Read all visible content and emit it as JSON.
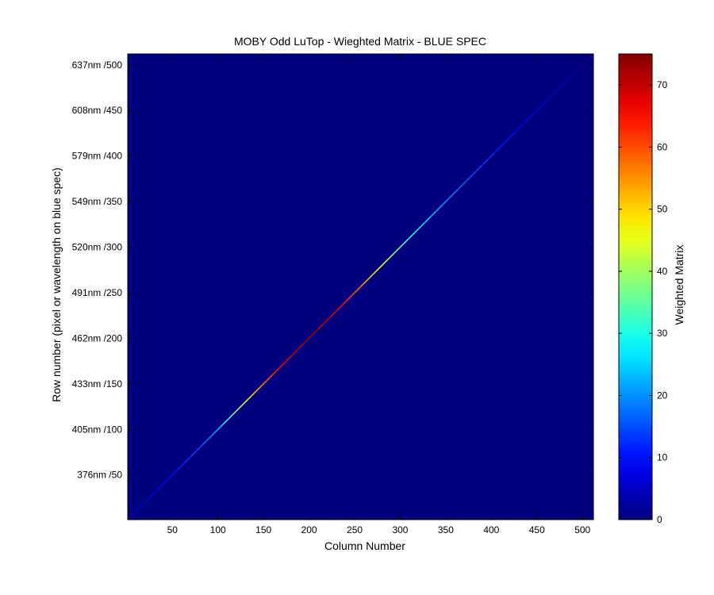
{
  "chart_data": {
    "type": "heatmap",
    "title": "MOBY Odd LuTop - Wieghted Matrix - BLUE SPEC",
    "xlabel": "Column Number",
    "ylabel": "Row number (pixel or wavelength on blue spec)",
    "colorbar_label": "Weighted Matrix",
    "xlim": [
      1,
      512
    ],
    "ylim": [
      1,
      512
    ],
    "clim": [
      0,
      75
    ],
    "colormap": "jet",
    "background_value": 0,
    "x_ticks": [
      50,
      100,
      150,
      200,
      250,
      300,
      350,
      400,
      450,
      500
    ],
    "x_tick_labels": [
      "50",
      "100",
      "150",
      "200",
      "250",
      "300",
      "350",
      "400",
      "450",
      "500"
    ],
    "y_ticks": [
      50,
      100,
      150,
      200,
      250,
      300,
      350,
      400,
      450,
      500
    ],
    "y_tick_labels": [
      "376nm /50",
      "405nm /100",
      "433nm /150",
      "462nm /200",
      "491nm /250",
      "520nm /300",
      "549nm /350",
      "579nm /400",
      "608nm /450",
      "637nm /500"
    ],
    "colorbar_ticks": [
      0,
      10,
      20,
      30,
      40,
      50,
      60,
      70
    ],
    "colorbar_tick_labels": [
      "0",
      "10",
      "20",
      "30",
      "40",
      "50",
      "60",
      "70"
    ],
    "diagonal_profile": {
      "description": "nonzero weights only on the main diagonal (row = column)",
      "index": [
        1,
        20,
        50,
        80,
        100,
        120,
        140,
        160,
        180,
        200,
        220,
        240,
        260,
        280,
        300,
        320,
        340,
        360,
        380,
        400,
        420,
        440,
        460,
        480,
        512
      ],
      "value": [
        3,
        6,
        10,
        15,
        22,
        38,
        52,
        62,
        70,
        72,
        70,
        64,
        55,
        45,
        35,
        27,
        22,
        18,
        15,
        13,
        10,
        8,
        6,
        3,
        0
      ]
    }
  }
}
